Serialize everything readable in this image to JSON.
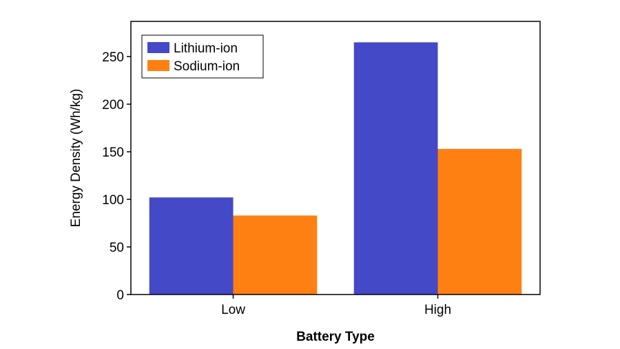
{
  "chart_data": {
    "type": "bar",
    "title": "",
    "xlabel": "Battery Type",
    "ylabel": "Energy Density (Wh/kg)",
    "categories": [
      "Low",
      "High"
    ],
    "series": [
      {
        "name": "Lithium-ion",
        "values": [
          102,
          265
        ],
        "color": "#4449c8"
      },
      {
        "name": "Sodium-ion",
        "values": [
          83,
          153
        ],
        "color": "#ff8012"
      }
    ],
    "ylim": [
      0,
      287
    ],
    "yticks": [
      0,
      50,
      100,
      150,
      200,
      250
    ],
    "grid": false,
    "legend": "top-left"
  }
}
